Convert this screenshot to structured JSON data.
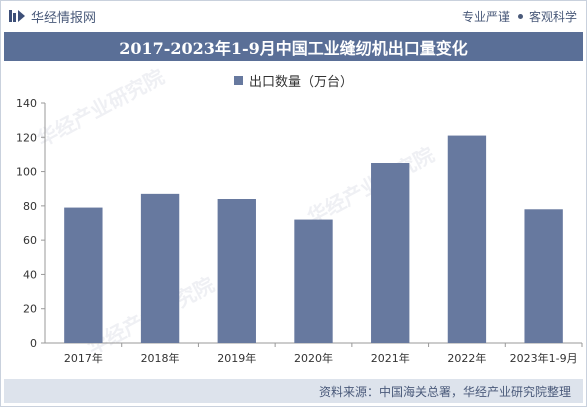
{
  "header": {
    "brand": "华经情报网",
    "tag_1": "专业严谨",
    "tag_2": "客观科学"
  },
  "title": "2017-2023年1-9月中国工业缝纫机出口量变化",
  "source": "资料来源：中国海关总署，华经产业研究院整理",
  "watermark_text": "华经产业研究院",
  "colors": {
    "bar": "#67799f",
    "title_bg": "#5a6f97",
    "footer_bg": "#dde3ec"
  },
  "chart_data": {
    "type": "bar",
    "categories": [
      "2017年",
      "2018年",
      "2019年",
      "2020年",
      "2021年",
      "2022年",
      "2023年1-9月"
    ],
    "series": [
      {
        "name": "出口数量（万台）",
        "values": [
          79,
          87,
          84,
          72,
          105,
          121,
          78
        ]
      }
    ],
    "ylim": [
      0,
      140
    ],
    "yticks": [
      0,
      20,
      40,
      60,
      80,
      100,
      120,
      140
    ],
    "grid": false,
    "legend_position": "top-center"
  }
}
